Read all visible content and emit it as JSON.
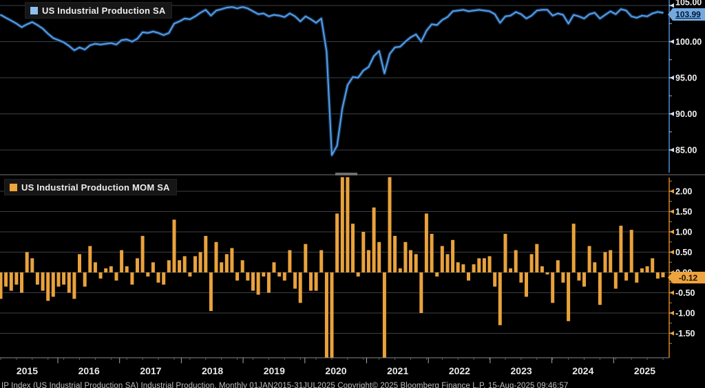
{
  "panels": {
    "top": {
      "legend_label": "US Industrial Production SA",
      "badge_label": "103.99",
      "line_color": "#57A0E8",
      "glow_color": "#16365c",
      "swatch_color": "#8CC1F0",
      "axis_color": "#3a6b9e",
      "tick_color": "#cfe0f2",
      "badge_bg": "#74A9E0"
    },
    "bottom": {
      "legend_label": "US Industrial Production MOM SA",
      "badge_label": "-0.12",
      "bar_color": "#E9A23C",
      "swatch_color": "#F0A43C",
      "axis_color": "#9a6418",
      "tick_color": "#F0A43C",
      "badge_bg": "#EDA33E"
    }
  },
  "xaxis": {
    "years": [
      "2015",
      "2016",
      "2017",
      "2018",
      "2019",
      "2020",
      "2021",
      "2022",
      "2023",
      "2024",
      "2025"
    ]
  },
  "footer": {
    "text": "IP Index (US Industrial Production SA) Industrial Production, Monthly 01JAN2015-31JUL2025 Copyright© 2025 Bloomberg Finance L.P. 15-Aug-2025 09:46:57"
  },
  "chart_data": [
    {
      "type": "line",
      "title": "US Industrial Production SA",
      "x_start": "2015-01",
      "x_end": "2025-07",
      "freq": "monthly",
      "ylim": [
        81.8,
        105.8
      ],
      "ytick_values": [
        105,
        100,
        95,
        90,
        85
      ],
      "ytick_labels": [
        "105.00",
        "100.00",
        "95.00",
        "90.00",
        "85.00"
      ],
      "last_value": 103.99,
      "legend_position": "top-left",
      "grid": "horizontal",
      "values": [
        103.7,
        103.3,
        102.9,
        102.5,
        102.0,
        102.4,
        102.7,
        102.3,
        101.8,
        101.1,
        100.5,
        100.2,
        99.9,
        99.4,
        98.8,
        99.2,
        98.9,
        99.5,
        99.7,
        99.6,
        99.7,
        99.8,
        99.6,
        100.2,
        100.3,
        100.0,
        100.4,
        101.3,
        101.2,
        101.4,
        101.2,
        100.9,
        101.2,
        102.5,
        102.8,
        103.2,
        103.1,
        103.5,
        104.0,
        104.4,
        103.6,
        104.3,
        104.5,
        104.7,
        104.8,
        104.6,
        104.8,
        104.6,
        104.2,
        103.8,
        103.9,
        103.5,
        103.7,
        103.6,
        103.4,
        103.9,
        103.5,
        102.8,
        103.5,
        103.1,
        102.6,
        103.2,
        98.6,
        84.3,
        85.6,
        90.8,
        94.0,
        95.1,
        95.0,
        96.0,
        96.5,
        98.0,
        98.7,
        95.6,
        98.3,
        99.2,
        99.3,
        100.0,
        100.6,
        101.0,
        100.0,
        101.5,
        102.4,
        102.3,
        103.0,
        103.4,
        104.2,
        104.3,
        104.4,
        104.2,
        104.3,
        104.4,
        104.3,
        104.2,
        103.8,
        102.6,
        103.5,
        103.6,
        104.1,
        103.8,
        103.2,
        103.6,
        104.3,
        104.4,
        104.4,
        103.6,
        103.9,
        103.7,
        102.5,
        103.7,
        103.5,
        103.2,
        103.8,
        104.0,
        103.2,
        103.7,
        104.2,
        103.8,
        104.5,
        104.3,
        103.5,
        103.3,
        103.6,
        103.5,
        103.9,
        104.11,
        103.99
      ]
    },
    {
      "type": "bar",
      "title": "US Industrial Production MOM SA",
      "x_start": "2015-01",
      "x_end": "2025-07",
      "freq": "monthly",
      "ylim": [
        -2.1,
        2.34
      ],
      "ytick_values": [
        2.0,
        1.5,
        1.0,
        0.5,
        0.0,
        -0.5,
        -1.0,
        -1.5
      ],
      "ytick_labels": [
        "2.00",
        "1.50",
        "1.00",
        "0.50",
        "0.00",
        "-0.50",
        "-1.00",
        "-1.50"
      ],
      "last_value": -0.12,
      "legend_position": "top-left",
      "grid": "horizontal",
      "clipped_outliers": true,
      "values": [
        -0.65,
        -0.35,
        -0.45,
        -0.3,
        -0.5,
        0.5,
        0.35,
        -0.3,
        -0.45,
        -0.7,
        -0.6,
        -0.35,
        -0.3,
        -0.5,
        -0.65,
        0.45,
        -0.35,
        0.65,
        0.25,
        -0.15,
        0.1,
        0.15,
        -0.2,
        0.55,
        0.15,
        -0.3,
        0.35,
        0.9,
        -0.1,
        0.25,
        -0.25,
        -0.3,
        0.3,
        1.3,
        0.3,
        0.4,
        -0.1,
        0.4,
        0.5,
        0.9,
        -0.95,
        0.75,
        0.25,
        0.45,
        0.6,
        -0.2,
        0.3,
        -0.2,
        -0.45,
        -0.55,
        -0.1,
        -0.5,
        0.25,
        -0.1,
        -0.2,
        0.55,
        -0.4,
        -0.75,
        0.7,
        -0.45,
        -0.45,
        0.55,
        -4.4,
        -12.7,
        1.45,
        6.1,
        3.5,
        1.2,
        -0.1,
        1.0,
        0.55,
        1.6,
        0.75,
        -3.2,
        2.8,
        0.9,
        0.1,
        0.75,
        0.55,
        0.45,
        -1.0,
        1.45,
        0.95,
        -0.1,
        0.65,
        0.45,
        0.8,
        0.25,
        0.2,
        -0.2,
        0.2,
        0.35,
        0.35,
        0.4,
        -0.35,
        -1.3,
        0.95,
        0.1,
        0.55,
        -0.25,
        -0.6,
        0.45,
        0.7,
        0.15,
        -0.05,
        -0.75,
        0.3,
        -0.25,
        -1.2,
        1.2,
        -0.2,
        -0.35,
        0.65,
        0.25,
        -0.8,
        0.5,
        0.55,
        -0.4,
        1.15,
        -0.2,
        1.05,
        -0.25,
        0.1,
        0.15,
        0.35,
        -0.15,
        -0.12
      ]
    }
  ]
}
